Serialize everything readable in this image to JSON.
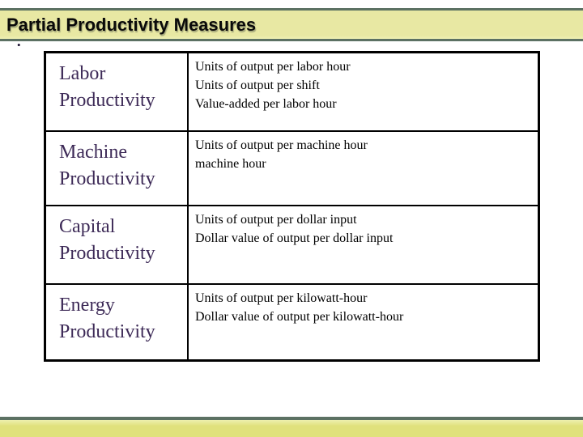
{
  "header": {
    "title": "Partial Productivity Measures"
  },
  "bullet": {
    "glyph": "•"
  },
  "table": {
    "rows": [
      {
        "measure": "Labor Productivity",
        "descriptions": [
          "Units of output per labor hour",
          "Units of output per shift",
          "Value-added per labor hour"
        ]
      },
      {
        "measure": "Machine Productivity",
        "descriptions": [
          "Units of output per machine hour",
          "machine hour"
        ]
      },
      {
        "measure": "Capital Productivity",
        "descriptions": [
          "Units of output per dollar input",
          "Dollar value of output per dollar input"
        ]
      },
      {
        "measure": "Energy Productivity",
        "descriptions": [
          "Units of output per kilowatt-hour",
          "Dollar value of output per kilowatt-hour"
        ]
      }
    ]
  },
  "colors": {
    "banner_background": "#e8e8a3",
    "footer_background": "#e0e17c",
    "accent_line": "#5c7163",
    "measure_text": "#3d2a57",
    "description_text": "#000000"
  }
}
